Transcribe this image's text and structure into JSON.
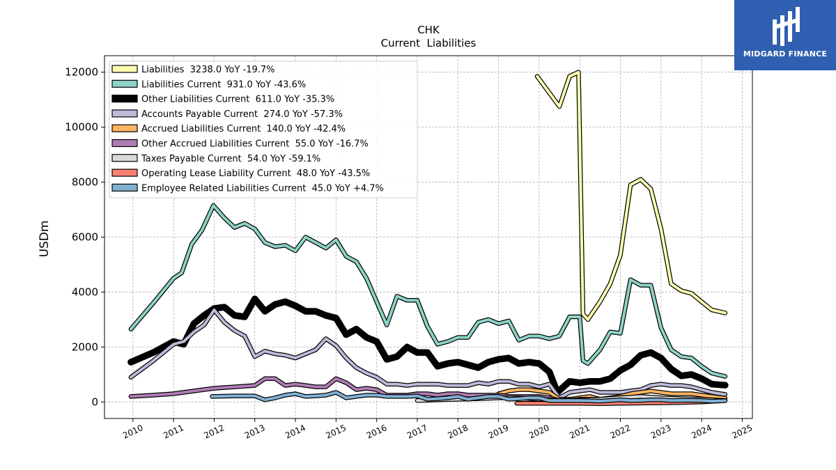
{
  "brand": {
    "name": "MIDGARD FINANCE",
    "color": "#2f5fb0"
  },
  "chart_data": {
    "type": "line",
    "title": "CHK",
    "subtitle": "Current  Liabilities",
    "ylabel": "USDm",
    "xlabel": "",
    "xlim": [
      2009.3,
      2025.25
    ],
    "ylim": [
      -600,
      12600
    ],
    "x_ticks": [
      "2010",
      "2011",
      "2012",
      "2013",
      "2014",
      "2015",
      "2016",
      "2017",
      "2018",
      "2019",
      "2020",
      "2021",
      "2022",
      "2023",
      "2024",
      "2025"
    ],
    "y_ticks": [
      "0",
      "2000",
      "4000",
      "6000",
      "8000",
      "10000",
      "12000"
    ],
    "grid": true,
    "legend_position": "top-left",
    "series": [
      {
        "name": "Liabilities",
        "legend": "Liabilities  3238.0 YoY -19.7%",
        "color": "#fdfdb0",
        "width": 4,
        "x": [
          2019.95,
          2020.5,
          2020.75,
          2020.97,
          2021.08,
          2021.2,
          2021.5,
          2021.75,
          2022.0,
          2022.25,
          2022.5,
          2022.75,
          2023.0,
          2023.25,
          2023.5,
          2023.75,
          2024.0,
          2024.25,
          2024.58
        ],
        "values": [
          11850,
          10750,
          11850,
          12000,
          3200,
          3000,
          3650,
          4300,
          5350,
          7900,
          8100,
          7750,
          6300,
          4300,
          4050,
          3950,
          3650,
          3350,
          3238
        ]
      },
      {
        "name": "Liabilities Current",
        "legend": "Liabilities Current  931.0 YoY -43.6%",
        "color": "#8dd3c7",
        "width": 4,
        "x": [
          2009.95,
          2010.5,
          2011.0,
          2011.2,
          2011.45,
          2011.7,
          2011.98,
          2012.25,
          2012.5,
          2012.75,
          2013.0,
          2013.25,
          2013.5,
          2013.75,
          2014.0,
          2014.25,
          2014.5,
          2014.75,
          2015.0,
          2015.25,
          2015.5,
          2015.75,
          2016.0,
          2016.25,
          2016.5,
          2016.75,
          2017.0,
          2017.25,
          2017.5,
          2017.75,
          2018.0,
          2018.25,
          2018.5,
          2018.75,
          2019.0,
          2019.25,
          2019.5,
          2019.75,
          2020.0,
          2020.25,
          2020.5,
          2020.75,
          2021.0,
          2021.08,
          2021.2,
          2021.5,
          2021.75,
          2022.0,
          2022.25,
          2022.5,
          2022.75,
          2023.0,
          2023.25,
          2023.5,
          2023.75,
          2024.0,
          2024.25,
          2024.58
        ],
        "values": [
          2650,
          3600,
          4500,
          4700,
          5750,
          6250,
          7150,
          6700,
          6350,
          6500,
          6300,
          5800,
          5650,
          5700,
          5500,
          6000,
          5800,
          5600,
          5900,
          5300,
          5100,
          4500,
          3650,
          2800,
          3850,
          3700,
          3700,
          2750,
          2100,
          2200,
          2350,
          2350,
          2900,
          3000,
          2850,
          2950,
          2250,
          2400,
          2400,
          2300,
          2400,
          3100,
          3100,
          1500,
          1400,
          1900,
          2550,
          2500,
          4450,
          4250,
          4250,
          2700,
          1900,
          1650,
          1600,
          1300,
          1050,
          931
        ]
      },
      {
        "name": "Other Liabilities Current",
        "legend": "Other Liabilities Current  611.0 YoY -35.3%",
        "color": "#000000",
        "width": 7,
        "x": [
          2009.95,
          2010.5,
          2011.0,
          2011.25,
          2011.5,
          2011.75,
          2012.0,
          2012.25,
          2012.5,
          2012.75,
          2013.0,
          2013.25,
          2013.5,
          2013.75,
          2014.0,
          2014.25,
          2014.5,
          2014.75,
          2015.0,
          2015.25,
          2015.5,
          2015.75,
          2016.0,
          2016.25,
          2016.5,
          2016.75,
          2017.0,
          2017.25,
          2017.5,
          2017.75,
          2018.0,
          2018.25,
          2018.5,
          2018.75,
          2019.0,
          2019.25,
          2019.5,
          2019.75,
          2020.0,
          2020.25,
          2020.45,
          2020.75,
          2021.0,
          2021.25,
          2021.5,
          2021.75,
          2022.0,
          2022.25,
          2022.5,
          2022.75,
          2023.0,
          2023.25,
          2023.5,
          2023.75,
          2024.0,
          2024.25,
          2024.58
        ],
        "values": [
          1450,
          1800,
          2200,
          2100,
          2850,
          3150,
          3400,
          3450,
          3150,
          3100,
          3750,
          3300,
          3550,
          3650,
          3500,
          3300,
          3300,
          3150,
          3050,
          2450,
          2650,
          2350,
          2200,
          1550,
          1650,
          2000,
          1800,
          1800,
          1300,
          1400,
          1450,
          1350,
          1250,
          1450,
          1550,
          1600,
          1400,
          1450,
          1400,
          1100,
          350,
          750,
          700,
          750,
          750,
          850,
          1150,
          1350,
          1700,
          1800,
          1600,
          1200,
          950,
          1000,
          850,
          650,
          611
        ]
      },
      {
        "name": "Accounts Payable Current",
        "legend": "Accounts Payable Current  274.0 YoY -57.3%",
        "color": "#bebada",
        "width": 4,
        "x": [
          2009.95,
          2010.5,
          2011.0,
          2011.25,
          2011.5,
          2011.75,
          2012.0,
          2012.25,
          2012.5,
          2012.75,
          2013.0,
          2013.25,
          2013.5,
          2013.75,
          2014.0,
          2014.25,
          2014.5,
          2014.75,
          2015.0,
          2015.25,
          2015.5,
          2015.75,
          2016.0,
          2016.25,
          2016.5,
          2016.75,
          2017.0,
          2017.25,
          2017.5,
          2017.75,
          2018.0,
          2018.25,
          2018.5,
          2018.75,
          2019.0,
          2019.25,
          2019.5,
          2019.75,
          2020.0,
          2020.25,
          2020.5,
          2020.75,
          2021.0,
          2021.25,
          2021.5,
          2021.75,
          2022.0,
          2022.25,
          2022.5,
          2022.75,
          2023.0,
          2023.25,
          2023.5,
          2023.75,
          2024.0,
          2024.25,
          2024.58
        ],
        "values": [
          900,
          1500,
          2100,
          2200,
          2550,
          2800,
          3350,
          2900,
          2600,
          2400,
          1650,
          1850,
          1750,
          1700,
          1600,
          1750,
          1900,
          2300,
          2050,
          1600,
          1250,
          1050,
          900,
          650,
          650,
          600,
          650,
          650,
          650,
          600,
          600,
          600,
          700,
          650,
          750,
          750,
          650,
          650,
          550,
          650,
          150,
          350,
          400,
          450,
          350,
          350,
          350,
          400,
          450,
          600,
          650,
          600,
          600,
          550,
          450,
          350,
          274
        ]
      },
      {
        "name": "Accrued Liabilities Current",
        "legend": "Accrued Liabilities Current  140.0 YoY -42.4%",
        "color": "#fdb462",
        "width": 4,
        "x": [
          2019.0,
          2019.25,
          2019.5,
          2019.75,
          2020.0,
          2020.25,
          2020.5,
          2020.75,
          2021.0,
          2021.25,
          2021.5,
          2021.75,
          2022.0,
          2022.25,
          2022.5,
          2022.75,
          2023.0,
          2023.25,
          2023.5,
          2023.75,
          2024.0,
          2024.25,
          2024.58
        ],
        "values": [
          300,
          400,
          450,
          450,
          400,
          350,
          100,
          100,
          150,
          200,
          100,
          150,
          200,
          300,
          350,
          400,
          350,
          300,
          300,
          300,
          250,
          200,
          140
        ]
      },
      {
        "name": "Other Accrued Liabilities Current",
        "legend": "Other Accrued Liabilities Current  55.0 YoY -16.7%",
        "color": "#b07cb5",
        "width": 4,
        "x": [
          2009.95,
          2010.5,
          2011.0,
          2011.5,
          2012.0,
          2012.5,
          2013.0,
          2013.25,
          2013.5,
          2013.75,
          2014.0,
          2014.25,
          2014.5,
          2014.75,
          2015.0,
          2015.25,
          2015.5,
          2015.75,
          2016.0,
          2016.25,
          2016.5,
          2016.75,
          2017.0,
          2017.25,
          2017.5,
          2017.75,
          2018.0,
          2018.25,
          2018.5,
          2018.75,
          2019.0,
          2019.25,
          2019.5,
          2019.75,
          2020.0,
          2020.25,
          2020.5,
          2020.75,
          2021.0,
          2021.25,
          2021.5,
          2021.75,
          2022.0,
          2022.25,
          2022.5,
          2022.75,
          2023.0,
          2023.25,
          2023.5,
          2023.75,
          2024.0,
          2024.25,
          2024.58
        ],
        "values": [
          200,
          250,
          300,
          400,
          500,
          550,
          600,
          850,
          850,
          600,
          650,
          600,
          550,
          550,
          850,
          700,
          450,
          500,
          450,
          250,
          250,
          250,
          300,
          300,
          250,
          300,
          300,
          250,
          250,
          250,
          250,
          200,
          200,
          200,
          200,
          150,
          50,
          50,
          100,
          100,
          100,
          100,
          100,
          100,
          100,
          100,
          100,
          100,
          100,
          100,
          100,
          80,
          55
        ]
      },
      {
        "name": "Taxes Payable Current",
        "legend": "Taxes Payable Current  54.0 YoY -59.1%",
        "color": "#d9d9d9",
        "width": 4,
        "x": [
          2017.0,
          2017.5,
          2018.0,
          2018.5,
          2019.0,
          2019.5,
          2020.0,
          2020.5,
          2021.0,
          2021.5,
          2022.0,
          2022.5,
          2023.0,
          2023.5,
          2024.0,
          2024.58
        ],
        "values": [
          50,
          80,
          100,
          120,
          150,
          150,
          100,
          60,
          80,
          100,
          150,
          200,
          150,
          120,
          100,
          54
        ]
      },
      {
        "name": "Operating Lease Liability Current",
        "legend": "Operating Lease Liability Current  48.0 YoY -43.5%",
        "color": "#fb8072",
        "width": 4,
        "x": [
          2019.45,
          2019.75,
          2020.0,
          2020.5,
          2021.0,
          2021.5,
          2022.0,
          2022.5,
          2023.0,
          2023.5,
          2024.0,
          2024.58
        ],
        "values": [
          -50,
          -50,
          -50,
          -50,
          -50,
          -60,
          -50,
          -40,
          -30,
          -20,
          0,
          48
        ]
      },
      {
        "name": "Employee Related Liabilities Current",
        "legend": "Employee Related Liabilities Current  45.0 YoY +4.7%",
        "color": "#80b1d3",
        "width": 4,
        "x": [
          2011.95,
          2012.5,
          2013.0,
          2013.25,
          2013.5,
          2013.75,
          2014.0,
          2014.25,
          2014.5,
          2014.75,
          2015.0,
          2015.25,
          2015.5,
          2015.75,
          2016.0,
          2016.25,
          2016.5,
          2016.75,
          2017.0,
          2017.25,
          2017.5,
          2017.75,
          2018.0,
          2018.25,
          2018.5,
          2018.75,
          2019.0,
          2019.25,
          2019.5,
          2019.75,
          2020.0,
          2020.25,
          2020.5,
          2021.0,
          2021.5,
          2022.0,
          2022.25,
          2022.5,
          2022.75,
          2023.0,
          2023.25,
          2023.5,
          2023.75,
          2024.0,
          2024.25,
          2024.58
        ],
        "values": [
          200,
          220,
          220,
          80,
          150,
          250,
          300,
          200,
          220,
          250,
          350,
          150,
          200,
          250,
          250,
          200,
          200,
          200,
          220,
          100,
          120,
          150,
          200,
          100,
          150,
          200,
          200,
          100,
          120,
          150,
          150,
          50,
          50,
          50,
          30,
          80,
          50,
          60,
          80,
          80,
          50,
          60,
          60,
          50,
          30,
          45
        ]
      }
    ]
  }
}
